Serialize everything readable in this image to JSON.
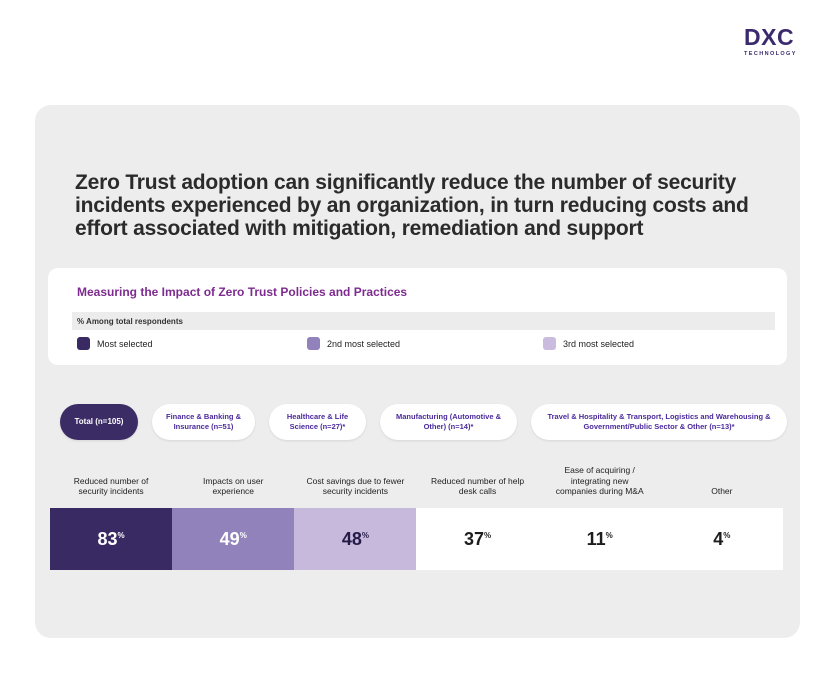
{
  "logo": {
    "brand": "DXC",
    "sub": "TECHNOLOGY"
  },
  "heading": "Zero Trust adoption can significantly reduce the number of security incidents experienced by an organization, in turn reducing costs and effort associated with mitigation, remediation and support",
  "panel": {
    "title": "Measuring the Impact of Zero Trust Policies and Practices",
    "subtitle": "% Among total respondents",
    "legend": [
      {
        "label": "Most selected",
        "color": "#392a64"
      },
      {
        "label": "2nd most selected",
        "color": "#9182bb"
      },
      {
        "label": "3rd most selected",
        "color": "#c9bcdf"
      }
    ]
  },
  "tabs": [
    {
      "label": "Total (n=105)",
      "selected": true
    },
    {
      "label": "Finance & Banking & Insurance (n=51)",
      "selected": false
    },
    {
      "label": "Healthcare & Life Science (n=27)*",
      "selected": false
    },
    {
      "label": "Manufacturing (Automotive & Other) (n=14)*",
      "selected": false
    },
    {
      "label": "Travel & Hospitality & Transport, Logistics and Warehousing & Government/Public Sector & Other (n=13)*",
      "selected": false
    }
  ],
  "chart_data": {
    "type": "bar",
    "title": "Measuring the Impact of Zero Trust Policies and Practices",
    "subtitle": "% Among total respondents",
    "categories": [
      "Reduced number of security incidents",
      "Impacts on user experience",
      "Cost savings due to fewer security incidents",
      "Reduced number of help desk calls",
      "Ease of acquiring / integrating new companies during M&A",
      "Other"
    ],
    "values": [
      83,
      49,
      48,
      37,
      11,
      4
    ],
    "value_suffix": "%",
    "legend_entries": [
      "Most selected",
      "2nd most selected",
      "3rd most selected"
    ],
    "colors": [
      "#392a64",
      "#9182bb",
      "#c6b9dc",
      "#ffffff",
      "#ffffff",
      "#ffffff"
    ],
    "legend_position": "top",
    "xlabel": "",
    "ylabel": "",
    "ylim": [
      0,
      100
    ]
  }
}
